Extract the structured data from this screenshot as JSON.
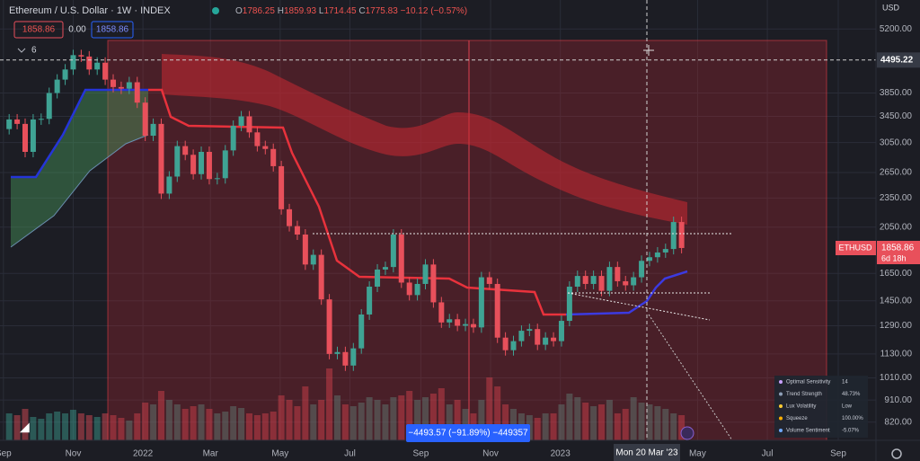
{
  "header": {
    "symbol": "Ethereum / U.S. Dollar · 1W · INDEX",
    "ohlc": [
      {
        "label": "O",
        "value": "1786.25"
      },
      {
        "label": "H",
        "value": "1859.93"
      },
      {
        "label": "L",
        "value": "1714.45"
      },
      {
        "label": "C",
        "value": "1775.83"
      }
    ],
    "change": "−10.12 (−0.57%)"
  },
  "indicator_row": {
    "price_red": "1858.86",
    "value": "0.00",
    "price_blue": "1858.86",
    "count": "6"
  },
  "currency": "USD",
  "crosshair": {
    "price": 4495.22,
    "date": "Mon 20 Mar '23"
  },
  "last_price": {
    "symbol": "ETHUSD",
    "price": "1858.86",
    "countdown": "6d 18h"
  },
  "measure": "−4493.57 (−91.89%) −449357",
  "info_panel": [
    {
      "label": "Optimal Sensitivity",
      "value": "14"
    },
    {
      "label": "Trend Strength",
      "value": "48.73%"
    },
    {
      "label": "Lux Volatility",
      "value": "Low"
    },
    {
      "label": "Squeeze",
      "value": "100.00%"
    },
    {
      "label": "Volume Sentiment",
      "value": "-5.07%"
    }
  ],
  "chart_data": {
    "type": "candlestick",
    "log_scale": true,
    "grid": true,
    "up_color": "#3fa394",
    "down_color": "#e8505b",
    "x": [
      "2021-09-06",
      "2021-09-13",
      "2021-09-20",
      "2021-09-27",
      "2021-10-04",
      "2021-10-11",
      "2021-10-18",
      "2021-10-25",
      "2021-11-01",
      "2021-11-08",
      "2021-11-15",
      "2021-11-22",
      "2021-11-29",
      "2021-12-06",
      "2021-12-13",
      "2021-12-20",
      "2021-12-27",
      "2022-01-03",
      "2022-01-10",
      "2022-01-17",
      "2022-01-24",
      "2022-01-31",
      "2022-02-07",
      "2022-02-14",
      "2022-02-21",
      "2022-02-28",
      "2022-03-07",
      "2022-03-14",
      "2022-03-21",
      "2022-03-28",
      "2022-04-04",
      "2022-04-11",
      "2022-04-18",
      "2022-04-25",
      "2022-05-02",
      "2022-05-09",
      "2022-05-16",
      "2022-05-23",
      "2022-05-30",
      "2022-06-06",
      "2022-06-13",
      "2022-06-20",
      "2022-06-27",
      "2022-07-04",
      "2022-07-11",
      "2022-07-18",
      "2022-07-25",
      "2022-08-01",
      "2022-08-08",
      "2022-08-15",
      "2022-08-22",
      "2022-08-29",
      "2022-09-05",
      "2022-09-12",
      "2022-09-19",
      "2022-09-26",
      "2022-10-03",
      "2022-10-10",
      "2022-10-17",
      "2022-10-24",
      "2022-10-31",
      "2022-11-07",
      "2022-11-14",
      "2022-11-21",
      "2022-11-28",
      "2022-12-05",
      "2022-12-12",
      "2022-12-19",
      "2022-12-26",
      "2023-01-02",
      "2023-01-09",
      "2023-01-16",
      "2023-01-23",
      "2023-01-30",
      "2023-02-06",
      "2023-02-13",
      "2023-02-20",
      "2023-02-27",
      "2023-03-06",
      "2023-03-13",
      "2023-03-20",
      "2023-03-27",
      "2023-04-03",
      "2023-04-10",
      "2023-04-17"
    ],
    "open": [
      3250,
      3400,
      3330,
      2920,
      3400,
      3410,
      3850,
      4100,
      4300,
      4600,
      4570,
      4300,
      4440,
      4100,
      3960,
      3930,
      4050,
      3680,
      3150,
      3330,
      2400,
      2600,
      3000,
      2880,
      2630,
      2920,
      2570,
      2580,
      2940,
      3300,
      3450,
      3200,
      3000,
      2960,
      2730,
      2230,
      2060,
      1980,
      1720,
      1800,
      1460,
      1130,
      1140,
      1070,
      1160,
      1360,
      1550,
      1680,
      1700,
      1980,
      1580,
      1490,
      1570,
      1720,
      1440,
      1310,
      1330,
      1290,
      1300,
      1280,
      1620,
      1570,
      1220,
      1150,
      1200,
      1260,
      1270,
      1180,
      1220,
      1200,
      1320,
      1550,
      1630,
      1570,
      1630,
      1520,
      1700,
      1590,
      1560,
      1620,
      1750,
      1780,
      1820,
      1850,
      2100
    ],
    "close": [
      3400,
      3330,
      2920,
      3400,
      3410,
      3850,
      4100,
      4300,
      4600,
      4570,
      4300,
      4440,
      4100,
      3960,
      3930,
      4050,
      3680,
      3150,
      3330,
      2400,
      2600,
      3000,
      2880,
      2630,
      2920,
      2570,
      2580,
      2940,
      3300,
      3450,
      3200,
      3000,
      2960,
      2730,
      2230,
      2060,
      1980,
      1720,
      1800,
      1460,
      1130,
      1140,
      1070,
      1160,
      1360,
      1550,
      1680,
      1700,
      1980,
      1580,
      1490,
      1570,
      1720,
      1440,
      1310,
      1330,
      1290,
      1300,
      1280,
      1620,
      1570,
      1220,
      1150,
      1200,
      1260,
      1270,
      1180,
      1220,
      1200,
      1320,
      1550,
      1630,
      1570,
      1630,
      1520,
      1700,
      1590,
      1560,
      1620,
      1750,
      1780,
      1820,
      1850,
      2100,
      1858.86
    ],
    "volume": [
      30,
      28,
      35,
      26,
      24,
      30,
      32,
      30,
      34,
      30,
      28,
      26,
      30,
      28,
      25,
      22,
      30,
      42,
      40,
      55,
      45,
      40,
      35,
      38,
      40,
      35,
      30,
      32,
      38,
      36,
      30,
      28,
      30,
      32,
      50,
      45,
      38,
      60,
      40,
      45,
      80,
      50,
      40,
      38,
      42,
      48,
      45,
      40,
      48,
      50,
      55,
      45,
      48,
      52,
      58,
      40,
      45,
      35,
      30,
      45,
      70,
      60,
      40,
      35,
      30,
      28,
      25,
      30,
      30,
      40,
      52,
      48,
      42,
      38,
      40,
      45,
      30,
      35,
      48,
      42,
      40,
      38,
      35,
      30,
      28
    ],
    "xlim": [
      "2021-08-29",
      "2023-10-04"
    ],
    "xticks": [
      {
        "value": "2021-09-01",
        "label": "Sep"
      },
      {
        "value": "2021-11-01",
        "label": "Nov"
      },
      {
        "value": "2022-01-01",
        "label": "2022"
      },
      {
        "value": "2022-03-01",
        "label": "Mar"
      },
      {
        "value": "2022-05-01",
        "label": "May"
      },
      {
        "value": "2022-07-01",
        "label": "Jul"
      },
      {
        "value": "2022-09-01",
        "label": "Sep"
      },
      {
        "value": "2022-11-01",
        "label": "Nov"
      },
      {
        "value": "2023-01-01",
        "label": "2023"
      },
      {
        "value": "2023-05-01",
        "label": "May"
      },
      {
        "value": "2023-07-01",
        "label": "Jul"
      },
      {
        "value": "2023-09-01",
        "label": "Sep"
      }
    ],
    "ylim": [
      753,
      5960
    ],
    "yticks": [
      {
        "value": 5200,
        "label": "5200.00"
      },
      {
        "value": 3850,
        "label": "3850.00"
      },
      {
        "value": 3450,
        "label": "3450.00"
      },
      {
        "value": 3050,
        "label": "3050.00"
      },
      {
        "value": 2650,
        "label": "2650.00"
      },
      {
        "value": 2350,
        "label": "2350.00"
      },
      {
        "value": 2050,
        "label": "2050.00"
      },
      {
        "value": 1650,
        "label": "1650.00"
      },
      {
        "value": 1450,
        "label": "1450.00"
      },
      {
        "value": 1290,
        "label": "1290.00"
      },
      {
        "value": 1130,
        "label": "1130.00"
      },
      {
        "value": 1010,
        "label": "1010.00"
      },
      {
        "value": 910,
        "label": "910.00"
      },
      {
        "value": 820,
        "label": "820.00"
      }
    ]
  }
}
